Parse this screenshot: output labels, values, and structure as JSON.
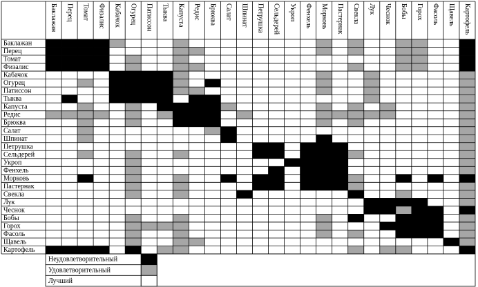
{
  "table": {
    "columns": [
      "Баклажан",
      "Перец",
      "Томат",
      "Физалис",
      "Кабачок",
      "Огурец",
      "Патиссон",
      "Тыква",
      "Капуста",
      "Редис",
      "Брюква",
      "Салат",
      "Шпинат",
      "Петрушка",
      "Сельдерей",
      "Укроп",
      "Фенхель",
      "Морковь",
      "Пастернак",
      "Свекла",
      "Лук",
      "Чеснок",
      "Бобы",
      "Горох",
      "Фасоль",
      "Щавель",
      "Картофель"
    ],
    "rows": [
      "Баклажан",
      "Перец",
      "Томат",
      "Физалис",
      "Кабачок",
      "Огурец",
      "Патиссон",
      "Тыква",
      "Капуста",
      "Редис",
      "Брюква",
      "Салат",
      "Шпинат",
      "Петрушка",
      "Сельдерей",
      "Укроп",
      "Фенхель",
      "Морковь",
      "Пастернак",
      "Свекла",
      "Лук",
      "Чеснок",
      "Бобы",
      "Горох",
      "Фасоль",
      "Щавель",
      "Картофель"
    ],
    "legend": [
      {
        "label": "Неудовлетворительный",
        "color": "#000000"
      },
      {
        "label": "Удовлетворительный",
        "color": "#a6a6a6"
      },
      {
        "label": "Лучший",
        "color": "#ffffff"
      }
    ],
    "cells": [
      "000012221222222221212211220",
      "000022221122222221212211220",
      "000021221222222222222211220",
      "000021221122222222212211220",
      "222200001222222221221222221",
      "221200001202222221221222221",
      "222200001122222221221222221",
      "202200002002222222221222221",
      "221221200001222221212122221",
      "111121210002122221111122221",
      "221221220002222221212222221",
      "221222222210222222222222221",
      "221222222220222220222222221",
      "222222222222200200022222221",
      "221221221222200200012222221",
      "222221222222222000022222221",
      "222221222222220200022222221",
      "220221221220200200012202020",
      "222221221222200200012222221",
      "222221221222022222202212221",
      "222222222222222222220000221",
      "222222222222222222220010020",
      "222221221222222221202200021",
      "222221111222222221222000021",
      "222221221222222221212200021",
      "222221221122222222222222201",
      "000020211222222222212112220"
    ]
  }
}
